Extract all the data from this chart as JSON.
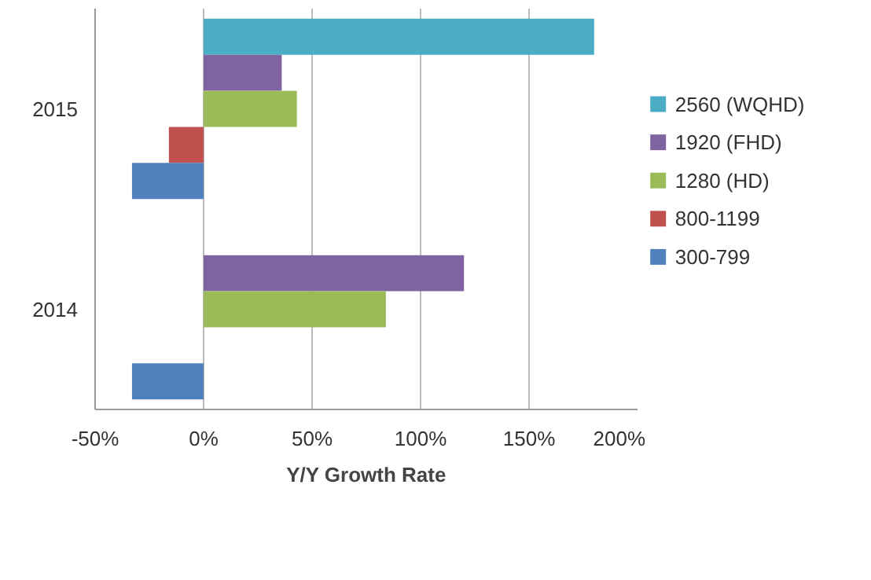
{
  "chart_data": {
    "type": "bar",
    "orientation": "horizontal",
    "xlabel": "Y/Y Growth Rate",
    "categories": [
      "2015",
      "2014"
    ],
    "series": [
      {
        "name": "2560 (WQHD)",
        "color": "#4bacc6",
        "values": [
          180,
          null
        ]
      },
      {
        "name": "1920 (FHD)",
        "color": "#8064a2",
        "values": [
          36,
          120
        ]
      },
      {
        "name": "1280 (HD)",
        "color": "#9bbb59",
        "values": [
          43,
          84
        ]
      },
      {
        "name": "800-1199",
        "color": "#c0504d",
        "values": [
          -16,
          null
        ]
      },
      {
        "name": "300-799",
        "color": "#4f81bd",
        "values": [
          -33,
          -33
        ]
      }
    ],
    "xlim": [
      -50,
      200
    ],
    "xticks": [
      {
        "value": -50,
        "label": "-50%"
      },
      {
        "value": 0,
        "label": "0%"
      },
      {
        "value": 50,
        "label": "50%"
      },
      {
        "value": 100,
        "label": "100%"
      },
      {
        "value": 150,
        "label": "150%"
      },
      {
        "value": 200,
        "label": "200%"
      }
    ],
    "grid": "x",
    "legend": "right"
  }
}
